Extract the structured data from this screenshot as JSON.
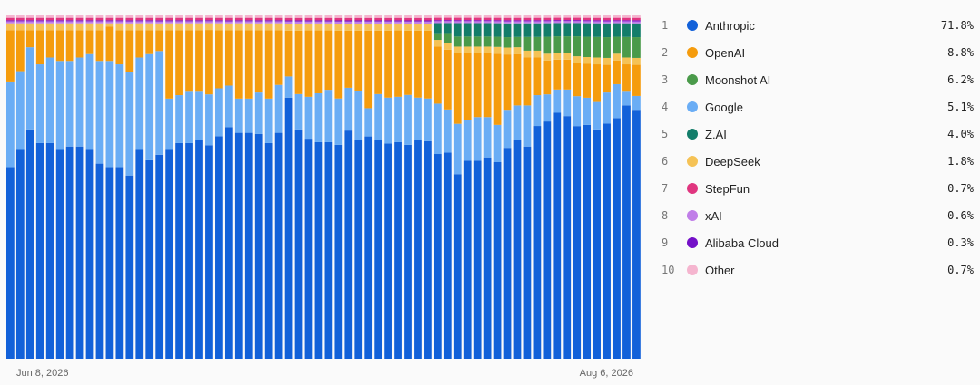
{
  "chart_data": {
    "type": "bar",
    "stacked": true,
    "normalized": true,
    "x_start_label": "Jun 8, 2026",
    "x_end_label": "Aug 6, 2026",
    "series_order_bottom_to_top": [
      "Anthropic",
      "Google",
      "OpenAI",
      "DeepSeek",
      "Moonshot AI",
      "Z.AI",
      "xAI",
      "Alibaba Cloud",
      "StepFun",
      "Other"
    ],
    "series": [
      {
        "name": "Anthropic",
        "color": "#1261d9",
        "values": [
          56,
          61,
          67,
          63,
          63,
          61,
          62,
          62,
          61,
          57,
          56,
          56,
          53,
          61,
          58,
          59,
          61,
          63,
          63,
          64,
          63,
          65,
          67,
          66,
          66,
          65,
          63,
          66,
          74,
          65,
          63,
          62,
          62,
          60,
          64,
          62,
          63,
          62,
          61,
          62,
          60,
          62,
          61,
          61,
          62,
          55,
          59,
          59,
          60,
          58,
          61,
          64,
          62,
          68,
          70,
          74,
          73,
          70,
          69,
          67,
          68,
          71,
          74,
          72
        ]
      },
      {
        "name": "Google",
        "color": "#6aadf5",
        "values": [
          25,
          23,
          24,
          23,
          25,
          26,
          25,
          26,
          28,
          30,
          31,
          30,
          30,
          27,
          31,
          30,
          15,
          14,
          15,
          14,
          15,
          14,
          12,
          10,
          10,
          12,
          13,
          14,
          6,
          10,
          12,
          14,
          15,
          13,
          12,
          14,
          8,
          13,
          13,
          13,
          14,
          12,
          12,
          15,
          13,
          15,
          12,
          13,
          12,
          11,
          11,
          10,
          12,
          9,
          8,
          7,
          8,
          9,
          8,
          8,
          9,
          10,
          4,
          4
        ]
      },
      {
        "name": "OpenAI",
        "color": "#f59c0d",
        "values": [
          15,
          12,
          5,
          10,
          8,
          9,
          9,
          8,
          7,
          9,
          10,
          10,
          12,
          8,
          7,
          6,
          20,
          19,
          18,
          18,
          19,
          17,
          16,
          20,
          20,
          18,
          20,
          16,
          13,
          18,
          19,
          18,
          17,
          19,
          16,
          17,
          22,
          18,
          19,
          19,
          18,
          19,
          19,
          17,
          18,
          21,
          20,
          19,
          19,
          21,
          16,
          15,
          14,
          11,
          10,
          9,
          9,
          10,
          10,
          11,
          8,
          7,
          8,
          9
        ]
      },
      {
        "name": "DeepSeek",
        "color": "#f5c255",
        "values": [
          2,
          2,
          2,
          2,
          2,
          2,
          2,
          2,
          2,
          2,
          1,
          2,
          2,
          2,
          2,
          2,
          2,
          2,
          2,
          2,
          2,
          2,
          2,
          2,
          2,
          2,
          2,
          2,
          2,
          2,
          2,
          2,
          2,
          2,
          2,
          2,
          2,
          2,
          2,
          2,
          2,
          2,
          2,
          2,
          2,
          2,
          2,
          2,
          2,
          2,
          2,
          2,
          2,
          2,
          2,
          2,
          2,
          2,
          2,
          2,
          2,
          2,
          2,
          2
        ]
      },
      {
        "name": "Moonshot AI",
        "color": "#4a9a4a",
        "values": [
          0,
          0,
          0,
          0,
          0,
          0,
          0,
          0,
          0,
          0,
          0,
          0,
          0,
          0,
          0,
          0,
          0,
          0,
          0,
          0,
          0,
          0,
          0,
          0,
          0,
          0,
          0,
          0,
          0,
          0,
          0,
          0,
          0,
          0,
          0,
          0,
          0,
          0,
          0,
          0,
          0,
          0,
          0,
          2,
          3,
          3,
          3,
          3,
          3,
          3,
          3,
          3,
          4,
          4,
          5,
          5,
          5,
          6,
          6,
          6,
          6,
          5,
          6,
          6
        ]
      },
      {
        "name": "Z.AI",
        "color": "#137d6a",
        "values": [
          0,
          0,
          0,
          0,
          0,
          0,
          0,
          0,
          0,
          0,
          0,
          0,
          0,
          0,
          0,
          0,
          0,
          0,
          0,
          0,
          0,
          0,
          0,
          0,
          0,
          0,
          0,
          0,
          0,
          0,
          0,
          0,
          0,
          0,
          0,
          0,
          0,
          0,
          0,
          0,
          0,
          0,
          0,
          3,
          3,
          4,
          4,
          4,
          4,
          4,
          4,
          4,
          4,
          4,
          4,
          4,
          4,
          4,
          4,
          4,
          4,
          4,
          4,
          4
        ]
      },
      {
        "name": "xAI",
        "color": "#c07ee8",
        "values": [
          0.6,
          0.6,
          0.6,
          0.6,
          0.6,
          0.6,
          0.6,
          0.6,
          0.6,
          0.6,
          0.6,
          0.6,
          0.6,
          0.6,
          0.6,
          0.6,
          0.6,
          0.6,
          0.6,
          0.6,
          0.6,
          0.6,
          0.6,
          0.6,
          0.6,
          0.6,
          0.6,
          0.6,
          0.6,
          0.6,
          0.6,
          0.6,
          0.6,
          0.6,
          0.6,
          0.6,
          0.6,
          0.6,
          0.6,
          0.6,
          0.6,
          0.6,
          0.6,
          0.6,
          0.6,
          0.6,
          0.6,
          0.6,
          0.6,
          0.6,
          0.6,
          0.6,
          0.6,
          0.6,
          0.6,
          0.6,
          0.6,
          0.6,
          0.6,
          0.6,
          0.6,
          0.6,
          0.6,
          0.6
        ]
      },
      {
        "name": "Alibaba Cloud",
        "color": "#7410c8",
        "values": [
          0.3,
          0.3,
          0.3,
          0.3,
          0.3,
          0.3,
          0.3,
          0.3,
          0.3,
          0.3,
          0.3,
          0.3,
          0.3,
          0.3,
          0.3,
          0.3,
          0.3,
          0.3,
          0.3,
          0.3,
          0.3,
          0.3,
          0.3,
          0.3,
          0.3,
          0.3,
          0.3,
          0.3,
          0.3,
          0.3,
          0.3,
          0.3,
          0.3,
          0.3,
          0.3,
          0.3,
          0.3,
          0.3,
          0.3,
          0.3,
          0.3,
          0.3,
          0.3,
          0.3,
          0.3,
          0.3,
          0.3,
          0.3,
          0.3,
          0.3,
          0.3,
          0.3,
          0.3,
          0.3,
          0.3,
          0.3,
          0.3,
          0.3,
          0.3,
          0.3,
          0.3,
          0.3,
          0.3,
          0.3
        ]
      },
      {
        "name": "StepFun",
        "color": "#e0357f",
        "values": [
          0.7,
          0.7,
          0.7,
          0.7,
          0.7,
          0.7,
          0.7,
          0.7,
          0.7,
          0.7,
          0.7,
          0.7,
          0.7,
          0.7,
          0.7,
          0.7,
          0.7,
          0.7,
          0.7,
          0.7,
          0.7,
          0.7,
          0.7,
          0.7,
          0.7,
          0.7,
          0.7,
          0.7,
          0.7,
          0.7,
          0.7,
          0.7,
          0.7,
          0.7,
          0.7,
          0.7,
          0.7,
          0.7,
          0.7,
          0.7,
          0.7,
          0.7,
          0.7,
          0.7,
          0.7,
          0.7,
          0.7,
          0.7,
          0.7,
          0.7,
          0.7,
          0.7,
          0.7,
          0.7,
          0.7,
          0.7,
          0.7,
          0.7,
          0.7,
          0.7,
          0.7,
          0.7,
          0.7,
          0.7
        ]
      },
      {
        "name": "Other",
        "color": "#f5b5cf",
        "values": [
          0.7,
          0.7,
          0.7,
          0.7,
          0.7,
          0.7,
          0.7,
          0.7,
          0.7,
          0.7,
          0.7,
          0.7,
          0.7,
          0.7,
          0.7,
          0.7,
          0.7,
          0.7,
          0.7,
          0.7,
          0.7,
          0.7,
          0.7,
          0.7,
          0.7,
          0.7,
          0.7,
          0.7,
          0.7,
          0.7,
          0.7,
          0.7,
          0.7,
          0.7,
          0.7,
          0.7,
          0.7,
          0.7,
          0.7,
          0.7,
          0.7,
          0.7,
          0.7,
          0.7,
          0.7,
          0.7,
          0.7,
          0.7,
          0.7,
          0.7,
          0.7,
          0.7,
          0.7,
          0.7,
          0.7,
          0.7,
          0.7,
          0.7,
          0.7,
          0.7,
          0.7,
          0.7,
          0.7,
          0.7
        ]
      }
    ]
  },
  "legend": [
    {
      "rank": "1",
      "name": "Anthropic",
      "pct": "71.8%",
      "color": "#1261d9"
    },
    {
      "rank": "2",
      "name": "OpenAI",
      "pct": "8.8%",
      "color": "#f59c0d"
    },
    {
      "rank": "3",
      "name": "Moonshot AI",
      "pct": "6.2%",
      "color": "#4a9a4a"
    },
    {
      "rank": "4",
      "name": "Google",
      "pct": "5.1%",
      "color": "#6aadf5"
    },
    {
      "rank": "5",
      "name": "Z.AI",
      "pct": "4.0%",
      "color": "#137d6a"
    },
    {
      "rank": "6",
      "name": "DeepSeek",
      "pct": "1.8%",
      "color": "#f5c255"
    },
    {
      "rank": "7",
      "name": "StepFun",
      "pct": "0.7%",
      "color": "#e0357f"
    },
    {
      "rank": "8",
      "name": "xAI",
      "pct": "0.6%",
      "color": "#c07ee8"
    },
    {
      "rank": "9",
      "name": "Alibaba Cloud",
      "pct": "0.3%",
      "color": "#7410c8"
    },
    {
      "rank": "10",
      "name": "Other",
      "pct": "0.7%",
      "color": "#f5b5cf"
    }
  ]
}
